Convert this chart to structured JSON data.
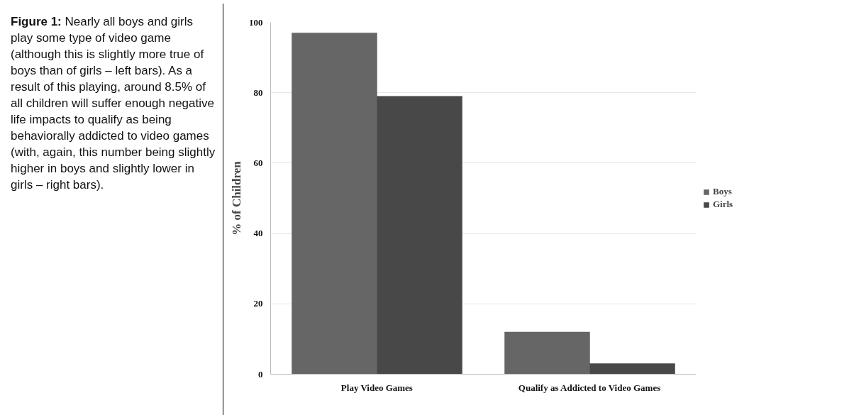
{
  "chart_data": {
    "type": "bar",
    "ylabel": "% of Children",
    "categories": [
      "Play Video Games",
      "Qualify as Addicted to Video Games"
    ],
    "series": [
      {
        "name": "Boys",
        "color": "#666666",
        "values": [
          97,
          12
        ]
      },
      {
        "name": "Girls",
        "color": "#484848",
        "values": [
          79,
          3
        ]
      }
    ],
    "ylim": [
      0,
      100
    ],
    "yticks": [
      0,
      20,
      40,
      60,
      80,
      100
    ],
    "grid": "y",
    "legend": "right",
    "annotations": [
      "Figure 1: Nearly all boys and girls play some type of video game (although this is slightly more true of boys than of girls – left bars). As a result of this playing, around 8.5% of all children will suffer enough negative life impacts to qualify as being behaviorally addicted to video games (with, again, this number being slightly higher in boys and slightly lower in girls – right bars)."
    ]
  }
}
